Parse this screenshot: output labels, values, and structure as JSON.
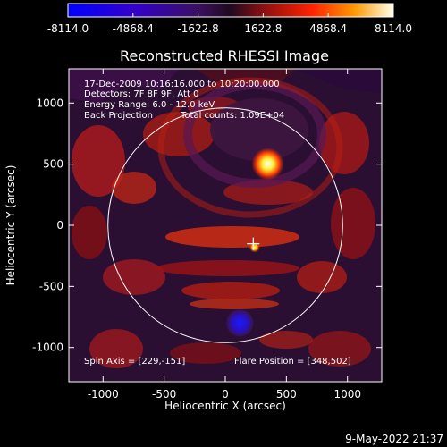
{
  "chart_data": {
    "type": "heatmap",
    "title": "Reconstructed RHESSI Image",
    "xlabel": "Heliocentric X (arcsec)",
    "ylabel": "Heliocentric Y (arcsec)",
    "xlim": [
      -1280,
      1280
    ],
    "ylim": [
      -1280,
      1280
    ],
    "x_ticks": [
      -1000,
      -500,
      0,
      500,
      1000
    ],
    "y_ticks": [
      -1000,
      -500,
      0,
      500,
      1000
    ],
    "colorbar": {
      "min": -8114.0,
      "max": 8114.0,
      "ticks": [
        "-8114.0",
        "-4868.4",
        "-1622.8",
        "1622.8",
        "4868.4",
        "8114.0"
      ]
    },
    "info_lines": [
      "17-Dec-2009 10:16:16.000 to 10:20:00.000",
      "Detectors: 7F 8F 9F, Att 0",
      "Energy Range: 6.0 - 12.0 keV",
      "Back Projection",
      "Total counts: 1.09E+04"
    ],
    "spin_axis_text": "Spin Axis = [229,-151]",
    "flare_position_text": "Flare Position = [348,502]",
    "solar_disk_radius": 960,
    "sources": [
      {
        "name": "positive peak",
        "x": 348,
        "y": 502,
        "value": 8114.0
      },
      {
        "name": "negative peak",
        "x": 120,
        "y": -800,
        "value": -8114.0
      },
      {
        "name": "minor positive",
        "x": 240,
        "y": -180,
        "value": 5000.0
      }
    ],
    "spin_axis_marker": {
      "x": 229,
      "y": -151
    }
  },
  "footer": {
    "timestamp": "9-May-2022 21:37"
  },
  "colors": {
    "background": "#000000",
    "axes": "#ffffff"
  }
}
